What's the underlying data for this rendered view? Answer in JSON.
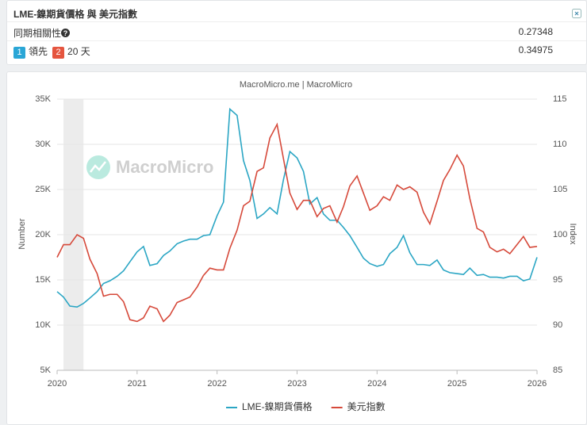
{
  "header": {
    "title": "LME-鎳期貨價格 與 美元指數",
    "rows": [
      {
        "label": "同期相關性",
        "value": 0.27348
      },
      {
        "badges": [
          "1",
          "2"
        ],
        "labels": [
          "領先",
          "20 天"
        ],
        "value": 0.34975
      }
    ]
  },
  "chart_data": {
    "type": "line",
    "subtitle": "MacroMicro.me | MacroMicro",
    "watermark": "MacroMicro",
    "ylabel": "Number",
    "y2label": "Index",
    "x": [
      2020.0,
      2020.08,
      2020.16,
      2020.25,
      2020.33,
      2020.41,
      2020.5,
      2020.58,
      2020.66,
      2020.75,
      2020.83,
      2020.91,
      2021.0,
      2021.08,
      2021.16,
      2021.25,
      2021.33,
      2021.41,
      2021.5,
      2021.58,
      2021.66,
      2021.75,
      2021.83,
      2021.91,
      2022.0,
      2022.08,
      2022.16,
      2022.25,
      2022.33,
      2022.41,
      2022.5,
      2022.58,
      2022.66,
      2022.75,
      2022.83,
      2022.91,
      2023.0,
      2023.08,
      2023.16,
      2023.25,
      2023.33,
      2023.41,
      2023.5,
      2023.58,
      2023.66,
      2023.75,
      2023.83,
      2023.91,
      2024.0,
      2024.08,
      2024.16,
      2024.25,
      2024.33,
      2024.41,
      2024.5,
      2024.58,
      2024.66,
      2024.75,
      2024.83,
      2024.91,
      2025.0,
      2025.08,
      2025.16,
      2025.25,
      2025.33,
      2025.41,
      2025.5,
      2025.58,
      2025.66,
      2025.75,
      2025.83,
      2025.91,
      2026.0
    ],
    "series": [
      {
        "name": "LME-鎳期貨價格",
        "color": "#2ba6c4",
        "values": [
          13700,
          13100,
          12100,
          12000,
          12400,
          13000,
          13700,
          14600,
          14900,
          15400,
          16000,
          17000,
          18100,
          18700,
          16600,
          16800,
          17700,
          18200,
          19000,
          19300,
          19500,
          19500,
          19900,
          20000,
          22100,
          23600,
          33900,
          33200,
          28200,
          26000,
          21800,
          22300,
          23000,
          22300,
          26100,
          29200,
          28500,
          27000,
          23400,
          24100,
          22300,
          21600,
          21600,
          20800,
          19900,
          18600,
          17400,
          16800,
          16500,
          16700,
          17900,
          18600,
          19900,
          18000,
          16700,
          16700,
          16600,
          17200,
          16100,
          15800,
          15700,
          15600,
          16300,
          15500,
          15600,
          15300,
          15300,
          15200,
          15400,
          15400,
          14900,
          15100,
          17500
        ]
      },
      {
        "name": "美元指數",
        "color": "#d6493a",
        "axis": "y2",
        "values": [
          97.5,
          98.9,
          98.9,
          100.0,
          99.6,
          97.3,
          95.7,
          93.2,
          93.4,
          93.4,
          92.6,
          90.6,
          90.4,
          90.8,
          92.1,
          91.8,
          90.4,
          91.1,
          92.5,
          92.8,
          93.1,
          94.2,
          95.5,
          96.3,
          96.1,
          96.1,
          98.5,
          100.5,
          103.2,
          103.7,
          107.0,
          107.4,
          110.7,
          112.2,
          108.4,
          104.6,
          102.8,
          103.8,
          103.8,
          102.0,
          102.9,
          103.2,
          101.4,
          103.1,
          105.4,
          106.5,
          104.6,
          102.7,
          103.2,
          104.2,
          103.8,
          105.5,
          105.0,
          105.3,
          104.7,
          102.5,
          101.2,
          103.7,
          106.0,
          107.2,
          108.8,
          107.6,
          104.0,
          100.7,
          100.3,
          98.6,
          98.1,
          98.4,
          97.9,
          98.9,
          99.8,
          98.6,
          98.7
        ]
      }
    ],
    "shaded": [
      [
        2020.08,
        2020.33
      ]
    ],
    "xlim": [
      2020,
      2026
    ],
    "xticks": [
      2020,
      2021,
      2022,
      2023,
      2024,
      2025,
      2026
    ],
    "ylim": [
      5000,
      35000
    ],
    "yticks": [
      {
        "value": 5000,
        "label": "5K"
      },
      {
        "value": 10000,
        "label": "10K"
      },
      {
        "value": 15000,
        "label": "15K"
      },
      {
        "value": 20000,
        "label": "20K"
      },
      {
        "value": 25000,
        "label": "25K"
      },
      {
        "value": 30000,
        "label": "30K"
      },
      {
        "value": 35000,
        "label": "35K"
      }
    ],
    "y2lim": [
      85,
      115
    ],
    "y2ticks": [
      85,
      90,
      95,
      100,
      105,
      110,
      115
    ],
    "grid": true
  }
}
